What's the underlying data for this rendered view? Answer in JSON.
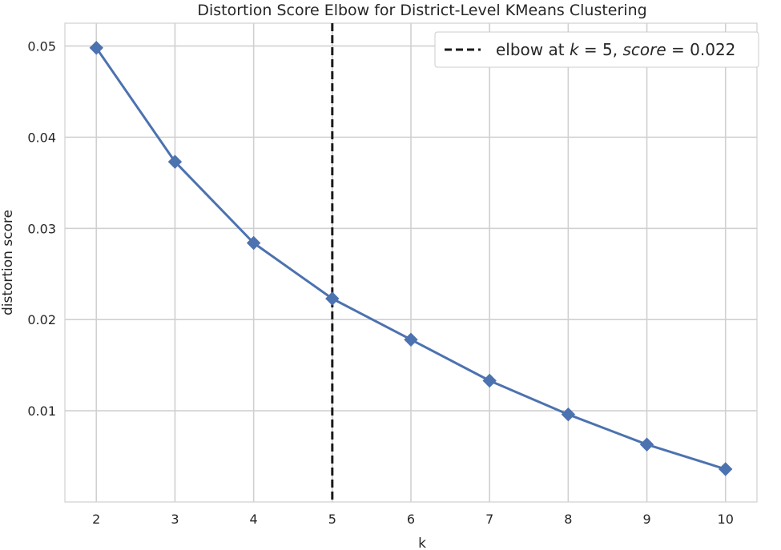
{
  "chart_data": {
    "type": "line",
    "title": "Distortion Score Elbow for District-Level KMeans Clustering",
    "xlabel": "k",
    "ylabel": "distortion score",
    "x": [
      2,
      3,
      4,
      5,
      6,
      7,
      8,
      9,
      10
    ],
    "series": [
      {
        "values": [
          0.0498,
          0.0373,
          0.0284,
          0.0223,
          0.0178,
          0.0133,
          0.0096,
          0.0063,
          0.0036
        ],
        "color": "#4c72b0",
        "marker": "diamond"
      }
    ],
    "xlim": [
      1.6,
      10.4
    ],
    "ylim": [
      0.0,
      0.0525
    ],
    "xticks": [
      2,
      3,
      4,
      5,
      6,
      7,
      8,
      9,
      10
    ],
    "yticks": [
      0.01,
      0.02,
      0.03,
      0.04,
      0.05
    ],
    "ytick_labels": [
      "0.01",
      "0.02",
      "0.03",
      "0.04",
      "0.05"
    ],
    "elbow": {
      "k": 5,
      "score": 0.022,
      "line_style": "dashed",
      "color": "#1a1a1a"
    },
    "legend": {
      "position": "top-right",
      "parts": [
        {
          "text": "elbow at ",
          "italic": false
        },
        {
          "text": "k",
          "italic": true
        },
        {
          "text": " = 5, ",
          "italic": false
        },
        {
          "text": "score",
          "italic": true
        },
        {
          "text": " = 0.022",
          "italic": false
        }
      ]
    },
    "grid": true,
    "background": "#ffffff",
    "grid_color": "#d0d0d0"
  }
}
